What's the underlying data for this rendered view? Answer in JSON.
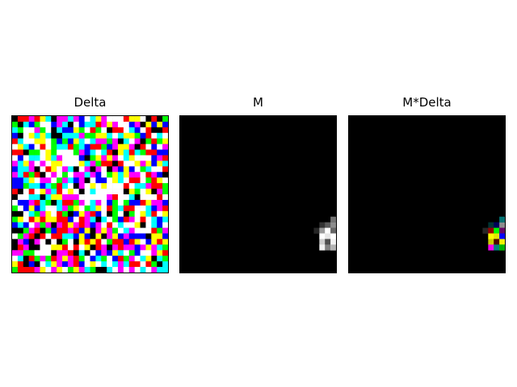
{
  "panels": [
    {
      "title": "Delta",
      "kind": "delta"
    },
    {
      "title": "M",
      "kind": "mask"
    },
    {
      "title": "M*Delta",
      "kind": "masked"
    }
  ],
  "grid_size": 28,
  "palette": [
    "#000000",
    "#ffffff",
    "#ff0000",
    "#00ff00",
    "#0000ff",
    "#ffff00",
    "#00ffff",
    "#ff00ff"
  ],
  "mask_cells": [
    {
      "r": 19,
      "c": 25,
      "v": 0.2
    },
    {
      "r": 19,
      "c": 26,
      "v": 0.35
    },
    {
      "r": 19,
      "c": 27,
      "v": 0.55
    },
    {
      "r": 18,
      "c": 28,
      "v": 0.45
    },
    {
      "r": 20,
      "c": 24,
      "v": 0.15
    },
    {
      "r": 20,
      "c": 25,
      "v": 0.6
    },
    {
      "r": 20,
      "c": 26,
      "v": 1.0
    },
    {
      "r": 20,
      "c": 27,
      "v": 0.4
    },
    {
      "r": 21,
      "c": 25,
      "v": 1.0
    },
    {
      "r": 21,
      "c": 26,
      "v": 0.9
    },
    {
      "r": 21,
      "c": 27,
      "v": 1.0
    },
    {
      "r": 22,
      "c": 25,
      "v": 0.8
    },
    {
      "r": 22,
      "c": 26,
      "v": 0.3
    },
    {
      "r": 22,
      "c": 27,
      "v": 0.95
    },
    {
      "r": 23,
      "c": 25,
      "v": 0.95
    },
    {
      "r": 23,
      "c": 26,
      "v": 0.5
    },
    {
      "r": 23,
      "c": 27,
      "v": 1.0
    },
    {
      "r": 23,
      "c": 28,
      "v": 0.7
    }
  ]
}
